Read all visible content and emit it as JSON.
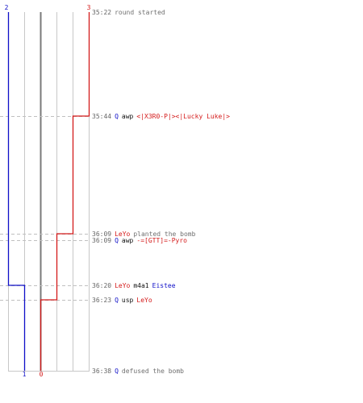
{
  "colors": {
    "blue": "#1010c8",
    "red": "#d41a1a",
    "grid": "#c8c8c8",
    "axis": "#7a7a7a",
    "time": "#666666",
    "text": "#707070",
    "dark": "#101010",
    "dash": "#c0c0c0"
  },
  "counts": {
    "blue_top": "2",
    "red_top": "3",
    "blue_bottom": "1",
    "red_bottom": "0"
  },
  "events": [
    {
      "time": "35:22",
      "parts": [
        {
          "text": "round started",
          "role": "msg"
        }
      ]
    },
    {
      "time": "35:44",
      "parts": [
        {
          "text": "Q",
          "role": "blue"
        },
        {
          "text": "awp",
          "role": "dark"
        },
        {
          "text": "<|X3R0-P|><|Lucky Luke|>",
          "role": "red"
        }
      ]
    },
    {
      "time": "36:09",
      "parts": [
        {
          "text": "LeYo",
          "role": "red"
        },
        {
          "text": "planted the bomb",
          "role": "msg"
        }
      ]
    },
    {
      "time": "36:09",
      "parts": [
        {
          "text": "Q",
          "role": "blue"
        },
        {
          "text": "awp",
          "role": "dark"
        },
        {
          "text": "-=[GTT]=-Pyro",
          "role": "red"
        }
      ]
    },
    {
      "time": "36:20",
      "parts": [
        {
          "text": "LeYo",
          "role": "red"
        },
        {
          "text": "m4a1",
          "role": "dark"
        },
        {
          "text": "Eistee",
          "role": "blue"
        }
      ]
    },
    {
      "time": "36:23",
      "parts": [
        {
          "text": "Q",
          "role": "blue"
        },
        {
          "text": "usp",
          "role": "dark"
        },
        {
          "text": "LeYo",
          "role": "red"
        }
      ]
    },
    {
      "time": "36:38",
      "parts": [
        {
          "text": "Q",
          "role": "blue"
        },
        {
          "text": "defused the bomb",
          "role": "msg"
        }
      ]
    }
  ],
  "timeline": {
    "blue_steps": [
      {
        "time": "35:22",
        "alive": 2
      },
      {
        "time": "36:20",
        "alive": 1
      }
    ],
    "red_steps": [
      {
        "time": "35:22",
        "alive": 3
      },
      {
        "time": "35:44",
        "alive": 2
      },
      {
        "time": "36:09",
        "alive": 1
      },
      {
        "time": "36:23",
        "alive": 0
      }
    ]
  }
}
